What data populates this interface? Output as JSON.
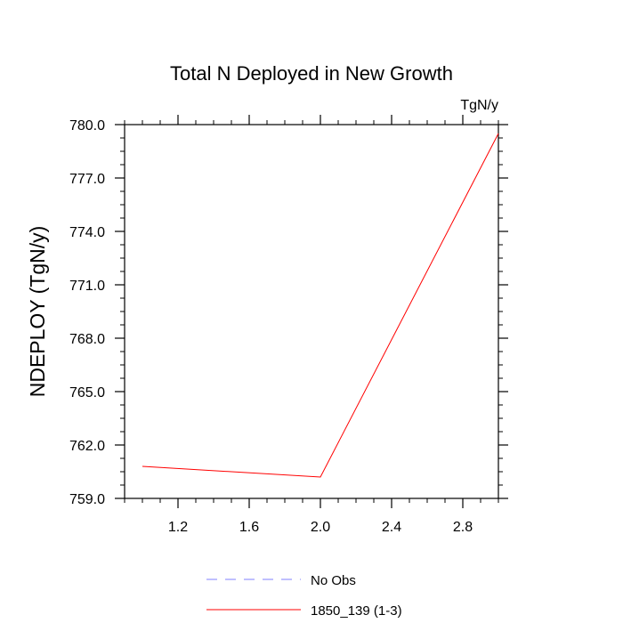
{
  "chart_data": {
    "type": "line",
    "title": "Total N Deployed in New Growth",
    "units_label": "TgN/y",
    "ylabel": "NDEPLOY  (TgN/y)",
    "xlabel": "",
    "xlim": [
      0.9,
      3.0
    ],
    "ylim": [
      759.0,
      780.0
    ],
    "x_ticks": [
      {
        "value": 1.2,
        "label": "1.2"
      },
      {
        "value": 1.6,
        "label": "1.6"
      },
      {
        "value": 2.0,
        "label": "2.0"
      },
      {
        "value": 2.4,
        "label": "2.4"
      },
      {
        "value": 2.8,
        "label": "2.8"
      }
    ],
    "y_ticks": [
      {
        "value": 759.0,
        "label": "759.0"
      },
      {
        "value": 762.0,
        "label": "762.0"
      },
      {
        "value": 765.0,
        "label": "765.0"
      },
      {
        "value": 768.0,
        "label": "768.0"
      },
      {
        "value": 771.0,
        "label": "771.0"
      },
      {
        "value": 774.0,
        "label": "774.0"
      },
      {
        "value": 777.0,
        "label": "777.0"
      },
      {
        "value": 780.0,
        "label": "780.0"
      }
    ],
    "series": [
      {
        "name": "1850_139 (1-3)",
        "color": "#ff0000",
        "dash": "solid",
        "x": [
          1.0,
          2.0,
          3.0
        ],
        "y": [
          760.8,
          760.2,
          779.5
        ]
      }
    ],
    "legend": {
      "placement": "bottom",
      "entries": [
        {
          "label": "No Obs",
          "color": "#8080ff",
          "dash": "dashed"
        },
        {
          "label": "1850_139 (1-3)",
          "color": "#ff0000",
          "dash": "solid"
        }
      ]
    },
    "grid": false
  }
}
